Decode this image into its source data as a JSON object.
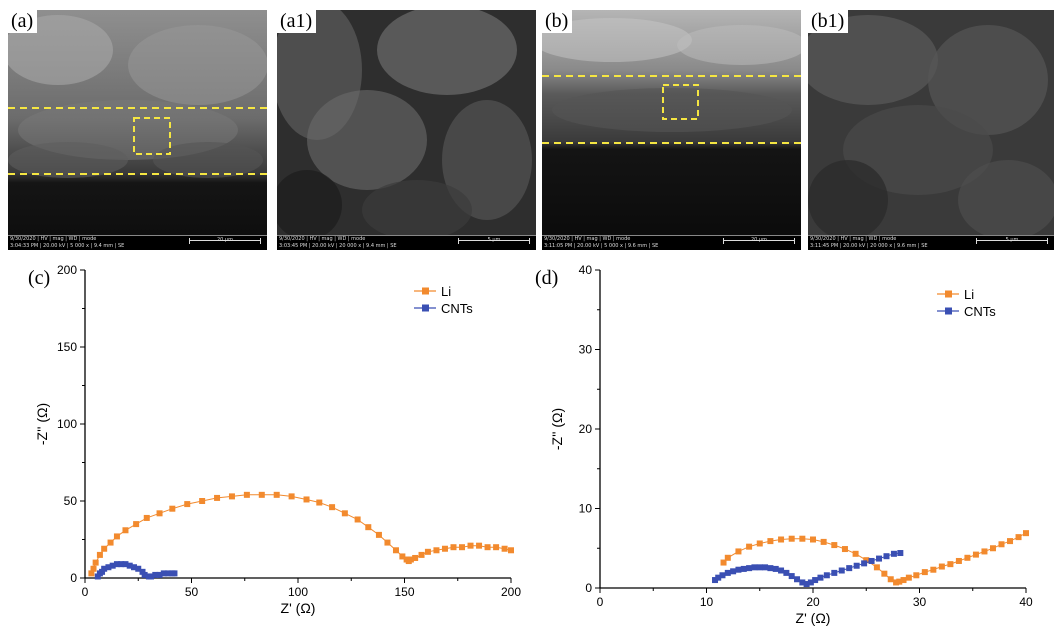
{
  "panels": {
    "a": {
      "label": "(a)",
      "databar": {
        "line1": "9/30/2020 | HV | mag | WD | mode",
        "line2": "3:04:33 PM | 20.00 kV | 5 000 x | 9.4 mm | SE",
        "scale": "20 μm"
      }
    },
    "a1": {
      "label": "(a1)",
      "databar": {
        "line1": "9/30/2020 | HV | mag | WD | mode",
        "line2": "3:03:45 PM | 20.00 kV | 20 000 x | 9.4 mm | SE",
        "scale": "5 μm"
      }
    },
    "b": {
      "label": "(b)",
      "databar": {
        "line1": "9/30/2020 | HV | mag | WD | mode",
        "line2": "3:11:05 PM | 20.00 kV | 5 000 x | 9.6 mm | SE",
        "scale": "20 μm"
      }
    },
    "b1": {
      "label": "(b1)",
      "databar": {
        "line1": "9/30/2020 | HV | mag | WD | mode",
        "line2": "3:11:45 PM | 20.00 kV | 20 000 x | 9.6 mm | SE",
        "scale": "5 μm"
      }
    }
  },
  "colors": {
    "li": "#f28a2e",
    "cnts": "#3a4fb3",
    "guide": "#f5e642"
  },
  "chart_data": [
    {
      "panel": "(c)",
      "type": "line",
      "xlabel": "Z' (Ω)",
      "ylabel": "-Z'' (Ω)",
      "xlim": [
        0,
        200
      ],
      "ylim": [
        0,
        200
      ],
      "xticks": [
        "0",
        "50",
        "100",
        "150",
        "200"
      ],
      "yticks": [
        "0",
        "50",
        "100",
        "150",
        "200"
      ],
      "legend_position": "top-right",
      "series": [
        {
          "name": "Li",
          "color": "#f28a2e",
          "x": [
            3,
            4,
            5,
            7,
            9,
            12,
            15,
            19,
            24,
            29,
            35,
            41,
            48,
            55,
            62,
            69,
            76,
            83,
            90,
            97,
            104,
            110,
            116,
            122,
            128,
            133,
            138,
            142,
            146,
            149,
            151,
            152,
            153,
            155,
            158,
            161,
            165,
            169,
            173,
            177,
            181,
            185,
            189,
            193,
            197,
            200
          ],
          "y": [
            3,
            6,
            10,
            15,
            19,
            23,
            27,
            31,
            35,
            39,
            42,
            45,
            48,
            50,
            52,
            53,
            54,
            54,
            54,
            53,
            51,
            49,
            46,
            42,
            38,
            33,
            28,
            23,
            18,
            14,
            12,
            11,
            12,
            13,
            15,
            17,
            18,
            19,
            20,
            20,
            21,
            21,
            20,
            20,
            19,
            18
          ]
        },
        {
          "name": "CNTs",
          "color": "#3a4fb3",
          "x": [
            6,
            7,
            8,
            9,
            11,
            13,
            15,
            17,
            19,
            21,
            23,
            25,
            27,
            28,
            30,
            31,
            33,
            35,
            37,
            39,
            41,
            42
          ],
          "y": [
            1,
            3,
            4,
            6,
            7,
            8,
            9,
            9,
            9,
            8,
            7,
            6,
            4,
            2,
            1,
            1,
            2,
            2,
            3,
            3,
            3,
            3
          ]
        }
      ]
    },
    {
      "panel": "(d)",
      "type": "line",
      "xlabel": "Z' (Ω)",
      "ylabel": "-Z'' (Ω)",
      "xlim": [
        0,
        40
      ],
      "ylim": [
        0,
        40
      ],
      "xticks": [
        "0",
        "10",
        "20",
        "30",
        "40"
      ],
      "yticks": [
        "0",
        "10",
        "20",
        "30",
        "40"
      ],
      "legend_position": "top-right",
      "series": [
        {
          "name": "Li",
          "color": "#f28a2e",
          "x": [
            11.6,
            12.0,
            13.0,
            14.0,
            15.0,
            16.0,
            17.0,
            18.0,
            19.0,
            20.0,
            21.0,
            22.0,
            23.0,
            24.0,
            25.0,
            26.0,
            26.7,
            27.3,
            27.8,
            28.1,
            28.5,
            29.0,
            29.7,
            30.5,
            31.3,
            32.1,
            32.9,
            33.7,
            34.5,
            35.3,
            36.1,
            36.9,
            37.7,
            38.5,
            39.3,
            40.0
          ],
          "y": [
            3.2,
            3.8,
            4.6,
            5.2,
            5.6,
            5.9,
            6.1,
            6.2,
            6.2,
            6.1,
            5.8,
            5.4,
            4.9,
            4.3,
            3.5,
            2.6,
            1.8,
            1.1,
            0.7,
            0.8,
            1.0,
            1.3,
            1.6,
            2.0,
            2.3,
            2.7,
            3.0,
            3.4,
            3.8,
            4.2,
            4.6,
            5.0,
            5.5,
            5.9,
            6.4,
            6.9
          ]
        },
        {
          "name": "CNTs",
          "color": "#3a4fb3",
          "x": [
            10.8,
            11.1,
            11.5,
            12.0,
            12.5,
            13.0,
            13.5,
            14.0,
            14.5,
            15.0,
            15.5,
            16.0,
            16.5,
            17.0,
            17.5,
            18.0,
            18.5,
            19.0,
            19.4,
            19.8,
            20.2,
            20.7,
            21.3,
            22.0,
            22.7,
            23.4,
            24.1,
            24.8,
            25.5,
            26.2,
            26.9,
            27.6,
            28.2
          ],
          "y": [
            1.0,
            1.3,
            1.6,
            1.9,
            2.1,
            2.3,
            2.4,
            2.5,
            2.6,
            2.6,
            2.6,
            2.5,
            2.4,
            2.2,
            1.9,
            1.5,
            1.1,
            0.7,
            0.5,
            0.7,
            1.0,
            1.3,
            1.6,
            1.9,
            2.2,
            2.5,
            2.8,
            3.1,
            3.4,
            3.7,
            4.0,
            4.3,
            4.4
          ]
        }
      ]
    }
  ]
}
